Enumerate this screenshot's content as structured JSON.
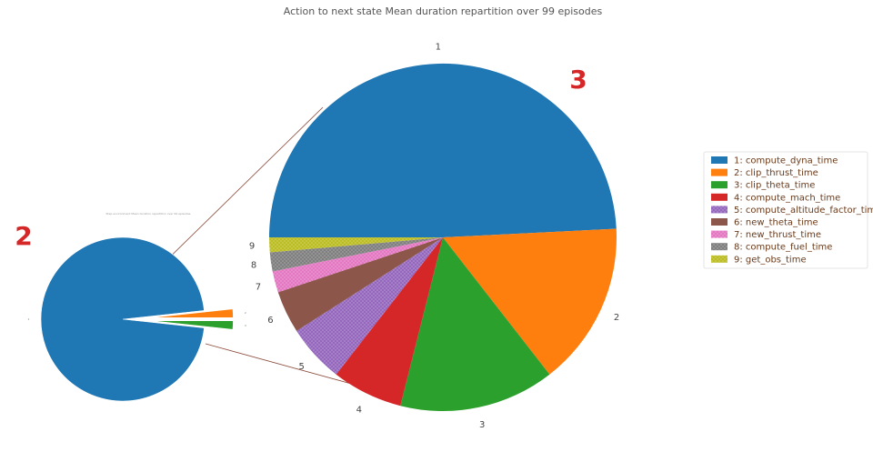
{
  "chart_data": [
    {
      "type": "pie",
      "title": "Action to next state Mean duration repartition over 99 episodes",
      "slices": [
        {
          "label": "1",
          "name": "1: compute_dyna_time",
          "value": 50.0,
          "color": "#1f77b4"
        },
        {
          "label": "2",
          "name": "2: clip_thrust_time",
          "value": 15.5,
          "color": "#ff7f0e"
        },
        {
          "label": "3",
          "name": "3: clip_theta_time",
          "value": 14.7,
          "color": "#2ca02c"
        },
        {
          "label": "4",
          "name": "4: compute_mach_time",
          "value": 6.7,
          "color": "#d62728"
        },
        {
          "label": "5",
          "name": "5: compute_altitude_factor_time",
          "value": 5.5,
          "color": "#9467bd",
          "hatch": true
        },
        {
          "label": "6",
          "name": "6: new_theta_time",
          "value": 4.0,
          "color": "#8c564b"
        },
        {
          "label": "7",
          "name": "7: new_thrust_time",
          "value": 2.0,
          "color": "#e377c2",
          "hatch": true
        },
        {
          "label": "8",
          "name": "8: compute_fuel_time",
          "value": 1.8,
          "color": "#7f7f7f",
          "hatch": true
        },
        {
          "label": "9",
          "name": "9: get_obs_time",
          "value": 1.4,
          "color": "#bcbd22",
          "hatch": true
        }
      ],
      "legend": "right"
    },
    {
      "type": "pie",
      "title": "Step environment Mean duration repartition over 99 episodes",
      "slices": [
        {
          "label": "1",
          "value": 96.6,
          "color": "#1f77b4"
        },
        {
          "label": "2",
          "value": 1.7,
          "color": "#ff7f0e",
          "exploded": true
        },
        {
          "label": "3",
          "value": 1.7,
          "color": "#2ca02c",
          "exploded": true
        }
      ]
    }
  ],
  "annotations": {
    "small_pie_marker": "2",
    "large_pie_marker": "3"
  }
}
